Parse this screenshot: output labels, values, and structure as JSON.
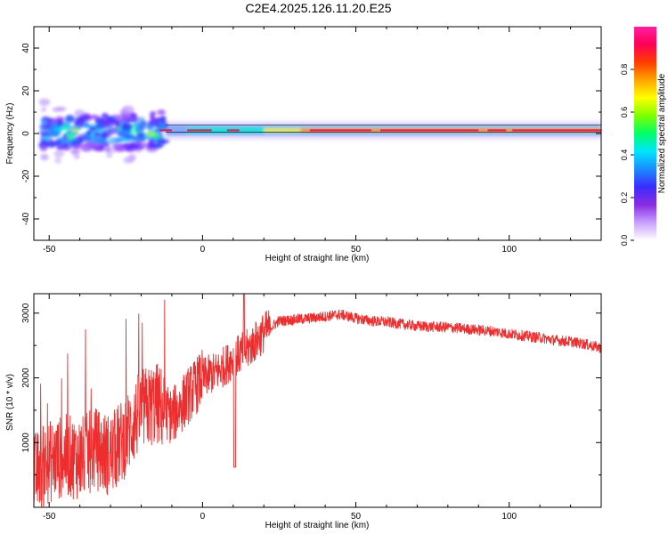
{
  "title": "C2E4.2025.126.11.20.E25",
  "colors": {
    "snr_line": "#ee2e2e",
    "ridge": "#e8184a",
    "grid": "#000000"
  },
  "chart_data": [
    {
      "type": "heatmap",
      "xlabel": "Height of straight line (km)",
      "ylabel": "Frequency (Hz)",
      "xlim": [
        -55,
        130
      ],
      "ylim": [
        -50,
        50
      ],
      "xticks": [
        -50,
        0,
        50,
        100
      ],
      "yticks": [
        -40,
        -20,
        0,
        20,
        40
      ],
      "ridge_frequency_hz": 1.5,
      "colorbar": {
        "label": "Normalized spectral amplitude",
        "range": [
          0,
          1
        ],
        "ticks": [
          "0.0",
          "0.2",
          "0.4",
          "0.6",
          "0.8"
        ],
        "colormap": [
          "#ffffff",
          "#c9a0ff",
          "#8a2be2",
          "#3b2cff",
          "#1a8cff",
          "#00e5ff",
          "#00ff66",
          "#7dff00",
          "#ffff00",
          "#ffa500",
          "#ff3b00",
          "#ff0055",
          "#ff1fa0"
        ]
      }
    },
    {
      "type": "line",
      "xlabel": "Height of straight line (km)",
      "ylabel": "SNR (10 * v/v)",
      "xlim": [
        -55,
        130
      ],
      "ylim": [
        0,
        3300
      ],
      "xticks": [
        -50,
        0,
        50,
        100
      ],
      "yticks": [
        1000,
        2000,
        3000
      ],
      "series": [
        {
          "x": [
            -55,
            -50,
            -45,
            -40,
            -35,
            -30,
            -25,
            -20,
            -15,
            -10,
            -5,
            0,
            5,
            10,
            15,
            20,
            25,
            30,
            35,
            40,
            45,
            50,
            55,
            60,
            65,
            70,
            75,
            80,
            85,
            90,
            95,
            100,
            105,
            110,
            115,
            120,
            125,
            130
          ],
          "values": [
            500,
            700,
            800,
            750,
            900,
            800,
            1100,
            1500,
            1600,
            1400,
            1700,
            2000,
            2100,
            2300,
            2450,
            2700,
            2880,
            2900,
            2920,
            2950,
            2980,
            2920,
            2880,
            2860,
            2830,
            2800,
            2790,
            2780,
            2760,
            2740,
            2720,
            2680,
            2650,
            2620,
            2580,
            2560,
            2520,
            2460
          ]
        }
      ]
    }
  ]
}
